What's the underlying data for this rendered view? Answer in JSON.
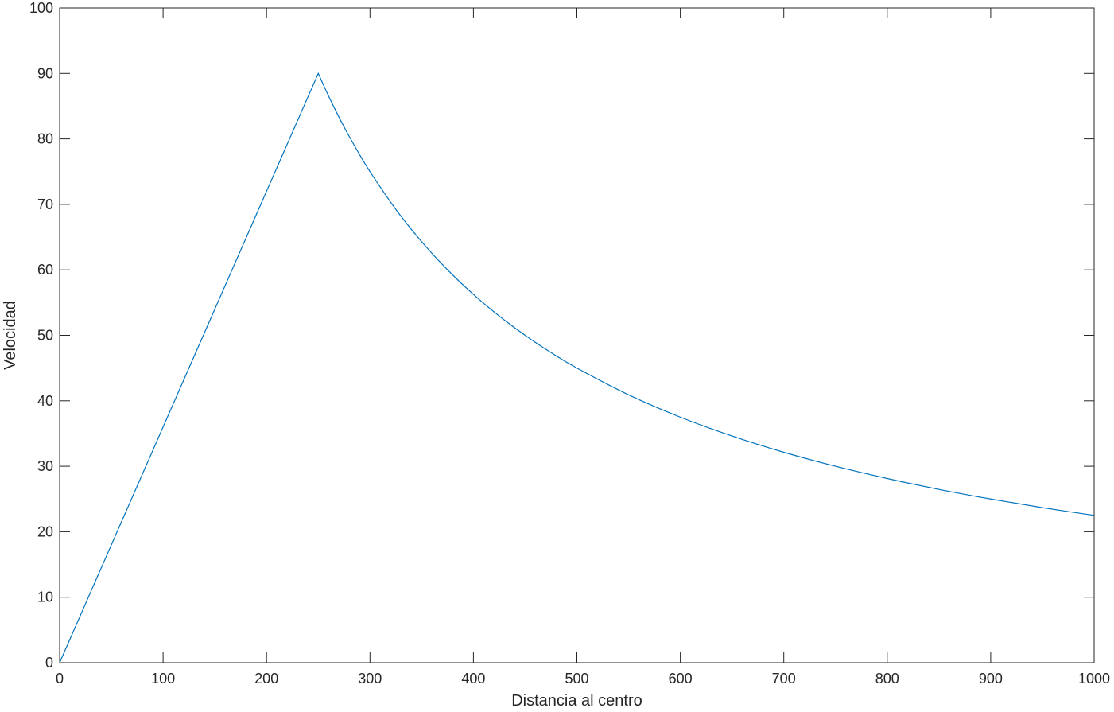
{
  "chart_data": {
    "type": "line",
    "title": "",
    "xlabel": "Distancia al centro",
    "ylabel": "Velocidad",
    "xlim": [
      0,
      1000
    ],
    "ylim": [
      0,
      100
    ],
    "xticks": [
      0,
      100,
      200,
      300,
      400,
      500,
      600,
      700,
      800,
      900,
      1000
    ],
    "yticks": [
      0,
      10,
      20,
      30,
      40,
      50,
      60,
      70,
      80,
      90,
      100
    ],
    "grid": false,
    "box": true,
    "series": [
      {
        "color": "#0072BD",
        "x": [
          0,
          250,
          260,
          270,
          280,
          290,
          300,
          325,
          350,
          375,
          400,
          425,
          450,
          475,
          500,
          550,
          600,
          650,
          700,
          750,
          800,
          850,
          900,
          950,
          1000
        ],
        "y": [
          0,
          90,
          86.54,
          83.33,
          80.36,
          77.59,
          75,
          69.23,
          64.29,
          60,
          56.25,
          52.94,
          50,
          47.37,
          45,
          40.91,
          37.5,
          34.62,
          32.14,
          30,
          28.13,
          26.47,
          25,
          23.68,
          22.5
        ]
      }
    ]
  }
}
